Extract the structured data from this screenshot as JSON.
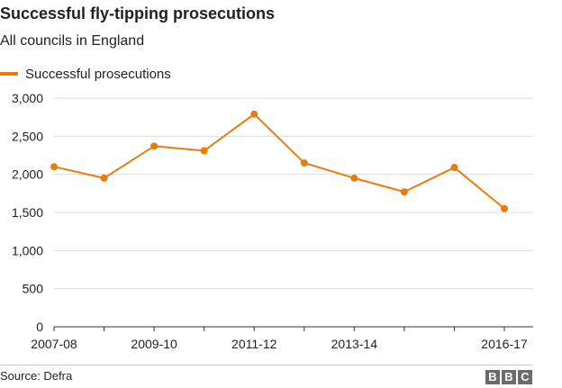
{
  "title": "Successful fly-tipping prosecutions",
  "subtitle": "All councils in England",
  "source": "Source: Defra",
  "logo": [
    "B",
    "B",
    "C"
  ],
  "colors": {
    "series": "#e87d0e",
    "grid": "#dcdcdc",
    "axis": "#333333",
    "text": "#222222"
  },
  "chart_data": {
    "type": "line",
    "title": "Successful fly-tipping prosecutions",
    "subtitle": "All councils in England",
    "x": [
      "2007-08",
      "2008-09",
      "2009-10",
      "2010-11",
      "2011-12",
      "2012-13",
      "2013-14",
      "2014-15",
      "2015-16",
      "2016-17"
    ],
    "x_tick_labels": [
      "2007-08",
      "2009-10",
      "2011-12",
      "2013-14",
      "2016-17"
    ],
    "series": [
      {
        "name": "Successful prosecutions",
        "values": [
          2100,
          1950,
          2370,
          2310,
          2790,
          2150,
          1950,
          1770,
          2090,
          1550
        ]
      }
    ],
    "y_ticks": [
      "0",
      "500",
      "1,000",
      "1,500",
      "2,000",
      "2,500",
      "3,000"
    ],
    "ylim": [
      0,
      3000
    ],
    "grid": true,
    "legend": "top-left",
    "xlabel": "",
    "ylabel": ""
  }
}
